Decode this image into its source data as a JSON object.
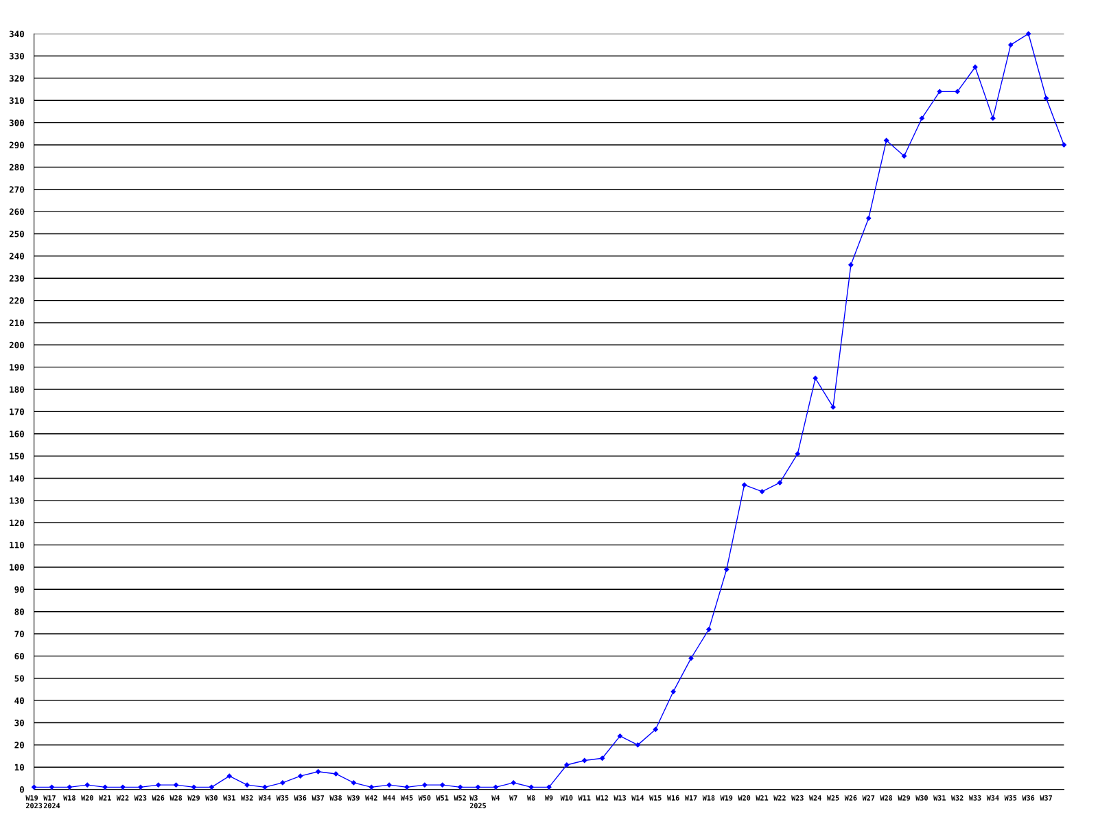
{
  "chart_data": {
    "type": "line",
    "categories": [
      "W19\n2023",
      "W17\n2024",
      "W18",
      "W20",
      "W21",
      "W22",
      "W23",
      "W26",
      "W28",
      "W29",
      "W30",
      "W31",
      "W32",
      "W34",
      "W35",
      "W36",
      "W37",
      "W38",
      "W39",
      "W42",
      "W44",
      "W45",
      "W50",
      "W51",
      "W52",
      "W3\n2025",
      "W4",
      "W7",
      "W8",
      "W9",
      "W10",
      "W11",
      "W12",
      "W13",
      "W14",
      "W15",
      "W16",
      "W17",
      "W18",
      "W19",
      "W20",
      "W21",
      "W22",
      "W23",
      "W24",
      "W25",
      "W26",
      "W27",
      "W28",
      "W29",
      "W30",
      "W31",
      "W32",
      "W33",
      "W34",
      "W35",
      "W36",
      "W37",
      null
    ],
    "series": [
      {
        "color": "#0000ff",
        "values": [
          1,
          1,
          1,
          2,
          1,
          1,
          1,
          2,
          2,
          1,
          1,
          6,
          2,
          1,
          3,
          6,
          8,
          7,
          3,
          1,
          2,
          1,
          2,
          2,
          1,
          1,
          1,
          3,
          1,
          1,
          11,
          13,
          14,
          24,
          20,
          27,
          44,
          59,
          72,
          99,
          137,
          134,
          138,
          151,
          185,
          172,
          236,
          257,
          292,
          285,
          302,
          314,
          314,
          325,
          302,
          335,
          340,
          311,
          290
        ]
      }
    ],
    "ylim": [
      0,
      340
    ],
    "yticks": [
      0,
      10,
      20,
      30,
      40,
      50,
      60,
      70,
      80,
      90,
      100,
      110,
      120,
      130,
      140,
      150,
      160,
      170,
      180,
      190,
      200,
      210,
      220,
      230,
      240,
      250,
      260,
      270,
      280,
      290,
      300,
      310,
      320,
      330,
      340
    ],
    "grid": "y",
    "marker": "diamond",
    "line_style": "solid"
  }
}
